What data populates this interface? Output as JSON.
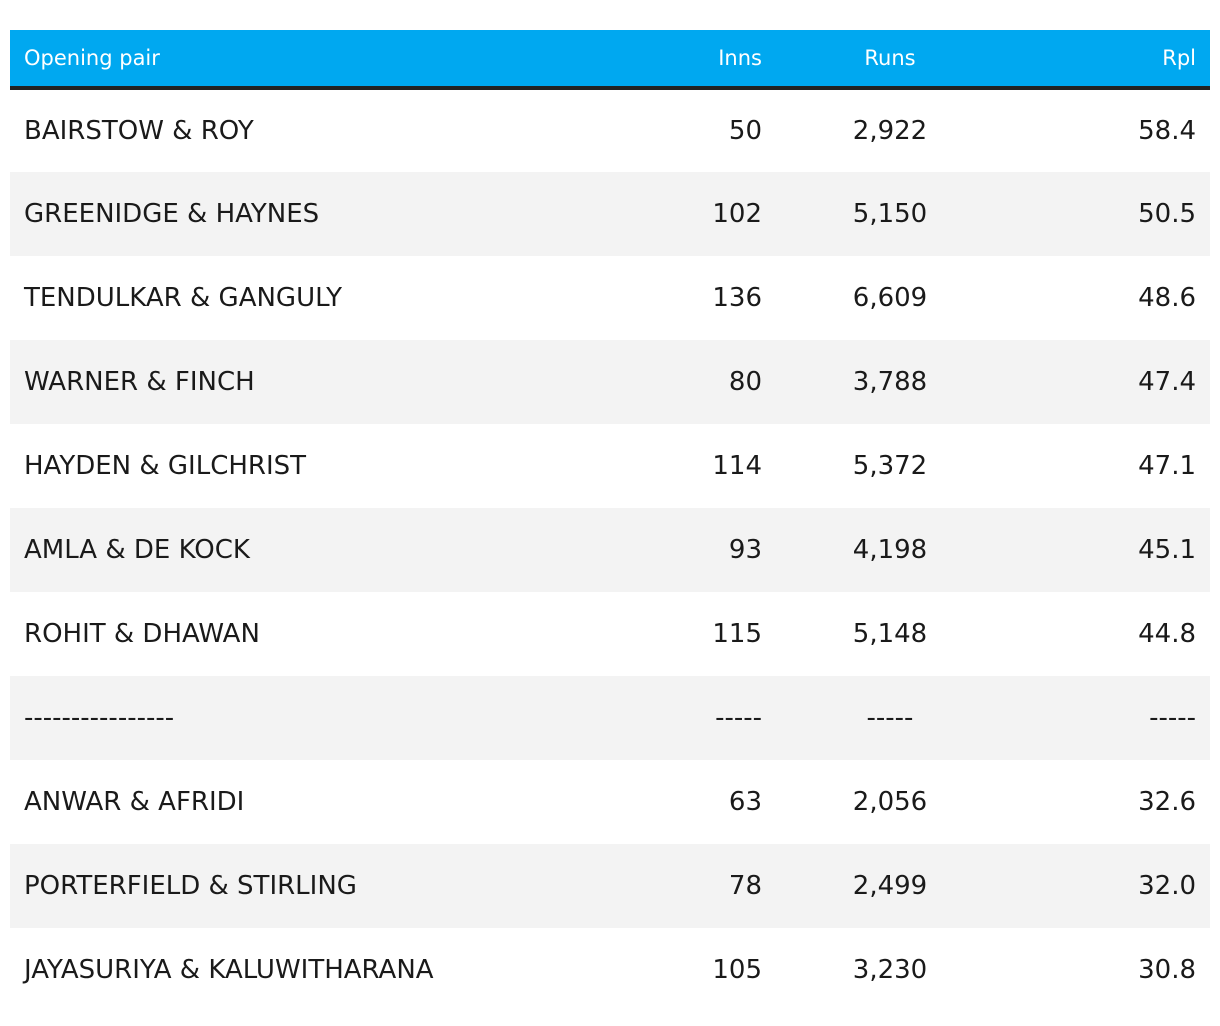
{
  "chart_data": {
    "type": "table",
    "columns": [
      "Opening pair",
      "Inns",
      "Runs",
      "Rpl"
    ],
    "rows": [
      [
        "BAIRSTOW & ROY",
        "50",
        "2,922",
        "58.4"
      ],
      [
        "GREENIDGE & HAYNES",
        "102",
        "5,150",
        "50.5"
      ],
      [
        "TENDULKAR & GANGULY",
        "136",
        "6,609",
        "48.6"
      ],
      [
        "WARNER & FINCH",
        "80",
        "3,788",
        "47.4"
      ],
      [
        "HAYDEN & GILCHRIST",
        "114",
        "5,372",
        "47.1"
      ],
      [
        "AMLA & DE KOCK",
        "93",
        "4,198",
        "45.1"
      ],
      [
        "ROHIT & DHAWAN",
        "115",
        "5,148",
        "44.8"
      ],
      [
        "----------------",
        "-----",
        "-----",
        "-----"
      ],
      [
        "ANWAR & AFRIDI",
        "63",
        "2,056",
        "32.6"
      ],
      [
        "PORTERFIELD & STIRLING",
        "78",
        "2,499",
        "32.0"
      ],
      [
        "JAYASURIYA & KALUWITHARANA",
        "105",
        "3,230",
        "30.8"
      ]
    ],
    "header_color": "#00a8f0",
    "stripe_color": "#f3f3f3"
  }
}
